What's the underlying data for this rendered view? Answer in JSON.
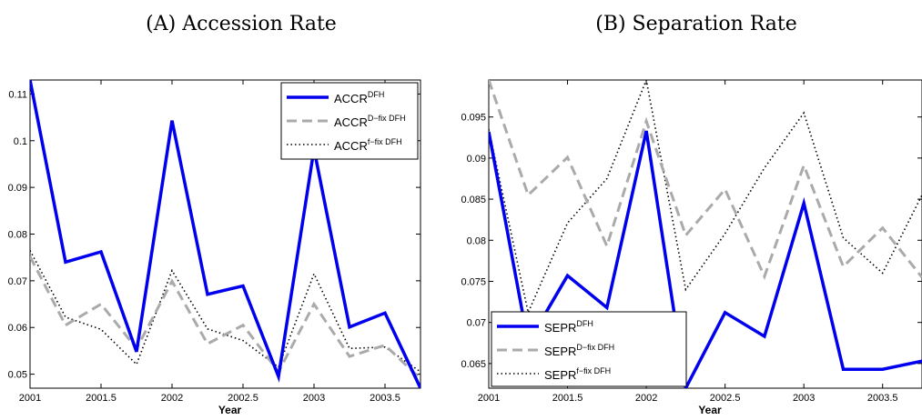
{
  "chart_data": [
    {
      "type": "line",
      "title": "(A) Accession Rate",
      "xlabel": "Year",
      "ylabel": "",
      "xlim": [
        2001,
        2003.75
      ],
      "ylim": [
        0.047,
        0.113
      ],
      "grid": false,
      "legend_position": "top-right",
      "x": [
        2001,
        2001.25,
        2001.5,
        2001.75,
        2002,
        2002.25,
        2002.5,
        2002.75,
        2003,
        2003.25,
        2003.5,
        2003.75
      ],
      "xticks": [
        "2001",
        "2001.5",
        "2002",
        "2002.5",
        "2003",
        "2003.5"
      ],
      "yticks": [
        "0.05",
        "0.06",
        "0.07",
        "0.08",
        "0.09",
        "0.1",
        "0.11"
      ],
      "series": [
        {
          "name": "ACCR",
          "name_sup": "DFH",
          "color": "#0000ee",
          "style": "solid",
          "values": [
            0.113,
            0.074,
            0.0762,
            0.0548,
            0.1043,
            0.0671,
            0.0689,
            0.0495,
            0.0982,
            0.0601,
            0.0631,
            0.047
          ]
        },
        {
          "name": "ACCR",
          "name_sup": "D−fix DFH",
          "color": "#aaaaaa",
          "style": "dashed",
          "values": [
            0.0752,
            0.0605,
            0.065,
            0.0555,
            0.0699,
            0.0565,
            0.0605,
            0.0505,
            0.065,
            0.0538,
            0.0562,
            0.049
          ]
        },
        {
          "name": "ACCR",
          "name_sup": "f−fix DFH",
          "color": "#000000",
          "style": "dotted",
          "values": [
            0.0765,
            0.0622,
            0.0596,
            0.0521,
            0.0722,
            0.0597,
            0.0572,
            0.0515,
            0.0715,
            0.0555,
            0.0558,
            0.0505
          ]
        }
      ]
    },
    {
      "type": "line",
      "title": "(B) Separation Rate",
      "xlabel": "Year",
      "ylabel": "",
      "xlim": [
        2001,
        2003.75
      ],
      "ylim": [
        0.062,
        0.0995
      ],
      "grid": false,
      "legend_position": "bottom-left",
      "x": [
        2001,
        2001.25,
        2001.5,
        2001.75,
        2002,
        2002.25,
        2002.5,
        2002.75,
        2003,
        2003.25,
        2003.5,
        2003.75
      ],
      "xticks": [
        "2001",
        "2001.5",
        "2002",
        "2002.5",
        "2003",
        "2003.5"
      ],
      "yticks": [
        "0.065",
        "0.07",
        "0.075",
        "0.08",
        "0.085",
        "0.09",
        "0.095"
      ],
      "series": [
        {
          "name": "SEPR",
          "name_sup": "DFH",
          "color": "#0000ee",
          "style": "solid",
          "values": [
            0.0932,
            0.0675,
            0.0757,
            0.0718,
            0.0933,
            0.062,
            0.0712,
            0.0683,
            0.0845,
            0.0643,
            0.0643,
            0.0653
          ]
        },
        {
          "name": "SEPR",
          "name_sup": "D−fix DFH",
          "color": "#aaaaaa",
          "style": "dashed",
          "values": [
            0.0995,
            0.0855,
            0.0901,
            0.0793,
            0.0945,
            0.0806,
            0.0862,
            0.0756,
            0.0891,
            0.0768,
            0.0815,
            0.0755
          ]
        },
        {
          "name": "SEPR",
          "name_sup": "f−fix DFH",
          "color": "#000000",
          "style": "dotted",
          "values": [
            0.0935,
            0.0712,
            0.0821,
            0.0875,
            0.0995,
            0.074,
            0.0808,
            0.0888,
            0.0955,
            0.0803,
            0.076,
            0.0855
          ]
        }
      ]
    }
  ]
}
